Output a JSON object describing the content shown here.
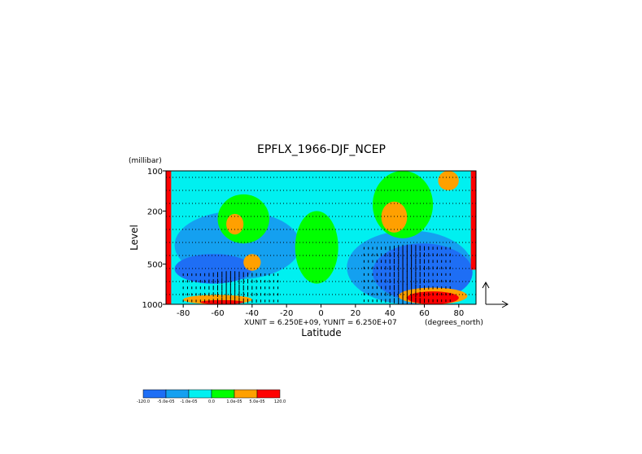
{
  "chart_data": {
    "type": "heatmap",
    "title": "EPFLX_1966-DJF_NCEP",
    "xlabel": "Latitude",
    "ylabel": "Level",
    "y_unit_label": "(millibar)",
    "x_unit_label": "(degrees_north)",
    "vector_scale_text": "XUNIT = 6.250E+09, YUNIT = 6.250E+07",
    "x_range": [
      -90,
      90
    ],
    "y_range": [
      1000,
      100
    ],
    "y_scale": "log",
    "x_ticks": [
      -80,
      -60,
      -40,
      -20,
      0,
      20,
      40,
      60,
      80
    ],
    "x_tick_labels": [
      "-80",
      "-60",
      "-40",
      "-20",
      "0",
      "20",
      "40",
      "60",
      "80"
    ],
    "y_ticks": [
      100,
      200,
      500,
      1000
    ],
    "y_tick_labels": [
      "100",
      "200",
      "500",
      "1000"
    ],
    "grid": "dotted horizontal lines",
    "colorbar": {
      "labels": [
        "-120.0",
        "-5.0e-05",
        "-1.0e-05",
        "0.0",
        "1.0e-05",
        "5.0e-05",
        "120.0"
      ],
      "colors": [
        "#1e6ef5",
        "#14a0f0",
        "#00f0f0",
        "#00ff00",
        "#ffa000",
        "#ff0000"
      ]
    },
    "shading_regions": [
      {
        "level": "-1.0e-05 to 0.0",
        "color": "#00f0f0",
        "lon": [
          -90,
          90
        ],
        "lev": [
          100,
          1000
        ]
      },
      {
        "level": "-5.0e-05 to -1.0e-05",
        "color": "#14a0f0",
        "lon": [
          -85,
          -12
        ],
        "lev": [
          200,
          650
        ]
      },
      {
        "level": "-5.0e-05 to -1.0e-05",
        "color": "#14a0f0",
        "lon": [
          15,
          88
        ],
        "lev": [
          280,
          1000
        ]
      },
      {
        "level": "-120.0 to -5.0e-05",
        "color": "#1e6ef5",
        "lon": [
          -85,
          -40
        ],
        "lev": [
          420,
          700
        ]
      },
      {
        "level": "-120.0 to -5.0e-05",
        "color": "#1e6ef5",
        "lon": [
          30,
          88
        ],
        "lev": [
          350,
          950
        ]
      },
      {
        "level": "0.0 to 1.0e-05",
        "color": "#00ff00",
        "lon": [
          -60,
          -30
        ],
        "lev": [
          150,
          350
        ]
      },
      {
        "level": "0.0 to 1.0e-05",
        "color": "#00ff00",
        "lon": [
          -15,
          10
        ],
        "lev": [
          200,
          700
        ]
      },
      {
        "level": "0.0 to 1.0e-05",
        "color": "#00ff00",
        "lon": [
          30,
          65
        ],
        "lev": [
          100,
          320
        ]
      },
      {
        "level": "1.0e-05 to 5.0e-05",
        "color": "#ffa000",
        "lon": [
          -55,
          -45
        ],
        "lev": [
          210,
          300
        ]
      },
      {
        "level": "1.0e-05 to 5.0e-05",
        "color": "#ffa000",
        "lon": [
          -45,
          -35
        ],
        "lev": [
          420,
          560
        ]
      },
      {
        "level": "1.0e-05 to 5.0e-05",
        "color": "#ffa000",
        "lon": [
          35,
          50
        ],
        "lev": [
          170,
          290
        ]
      },
      {
        "level": "1.0e-05 to 5.0e-05",
        "color": "#ffa000",
        "lon": [
          68,
          80
        ],
        "lev": [
          100,
          140
        ]
      },
      {
        "level": "1.0e-05 to 5.0e-05",
        "color": "#ffa000",
        "lon": [
          -80,
          -40
        ],
        "lev": [
          850,
          1000
        ]
      },
      {
        "level": "1.0e-05 to 5.0e-05",
        "color": "#ffa000",
        "lon": [
          45,
          85
        ],
        "lev": [
          750,
          1000
        ]
      },
      {
        "level": "5.0e-05 to 120.0",
        "color": "#ff0000",
        "lon": [
          50,
          80
        ],
        "lev": [
          800,
          1000
        ]
      },
      {
        "level": "5.0e-05 to 120.0",
        "color": "#ff0000",
        "lon": [
          -70,
          -45
        ],
        "lev": [
          930,
          1000
        ]
      },
      {
        "level": "5.0e-05 to 120.0",
        "color": "#ff0000",
        "lon": [
          -90,
          -87
        ],
        "lev": [
          100,
          1000
        ]
      },
      {
        "level": "5.0e-05 to 120.0",
        "color": "#ff0000",
        "lon": [
          87,
          90
        ],
        "lev": [
          100,
          550
        ]
      }
    ]
  }
}
